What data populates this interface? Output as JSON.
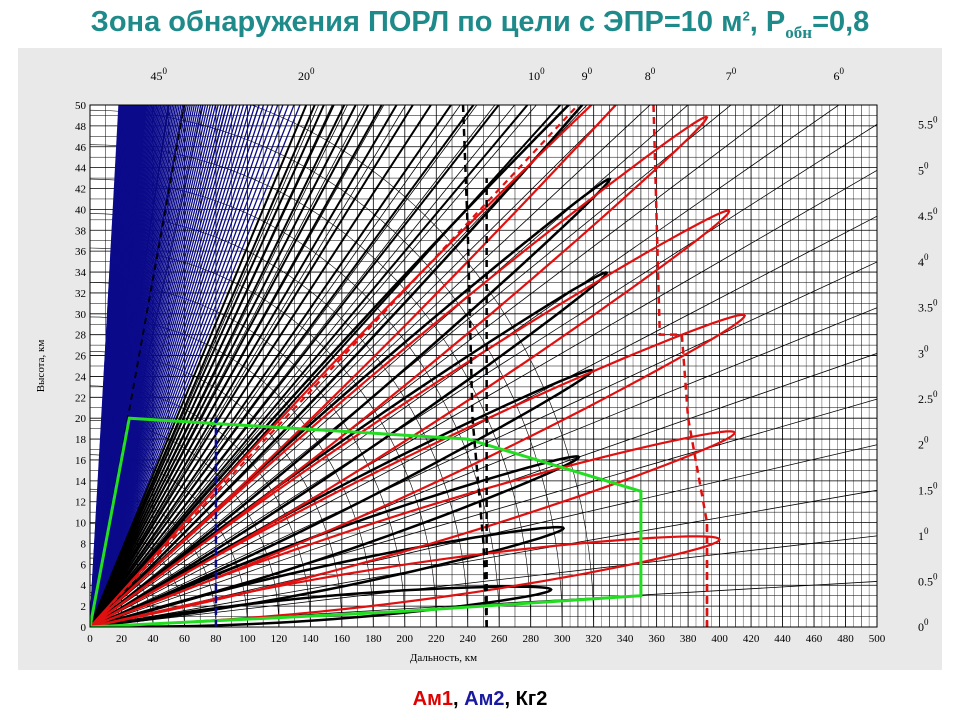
{
  "title": {
    "text": "Зона обнаружения ПОРЛ по цели с ЭПР=10 м",
    "sup": "2",
    "p_letter": ", Р",
    "p_sub": "обн",
    "p_value": "=0,8"
  },
  "caption": {
    "items": [
      {
        "label": "Ам1",
        "color": "#e00000"
      },
      {
        "sep": ", "
      },
      {
        "label": "Ам2",
        "color": "#1a1aa0"
      },
      {
        "sep": ", "
      },
      {
        "label": "Кг2",
        "color": "#000000"
      }
    ]
  },
  "chart_data": {
    "type": "line",
    "xlabel": "Дальность, км",
    "ylabel": "Высота, км",
    "xlim": [
      0,
      500
    ],
    "ylim": [
      0,
      50
    ],
    "x_ticks": [
      0,
      20,
      40,
      60,
      80,
      100,
      120,
      140,
      160,
      180,
      200,
      220,
      240,
      260,
      280,
      300,
      320,
      340,
      360,
      380,
      400,
      420,
      440,
      460,
      480,
      500
    ],
    "y_ticks": [
      0,
      2,
      4,
      6,
      8,
      10,
      12,
      14,
      16,
      18,
      20,
      22,
      24,
      26,
      28,
      30,
      32,
      34,
      36,
      38,
      40,
      42,
      44,
      46,
      48,
      50
    ],
    "top_angle_labels": [
      "45",
      "20",
      "10",
      "9",
      "8",
      "7",
      "6"
    ],
    "top_angle_values": [
      45,
      20,
      10,
      9,
      8,
      7,
      6
    ],
    "right_angle_labels": [
      "0",
      "0.5",
      "1",
      "1.5",
      "2",
      "2.5",
      "3",
      "3.5",
      "4",
      "4.5",
      "5",
      "5.5"
    ],
    "right_angle_values": [
      0,
      0.5,
      1,
      1.5,
      2,
      2.5,
      3,
      3.5,
      4,
      4.5,
      5,
      5.5
    ],
    "degree_mark": "0",
    "colors": {
      "blue": "#0a0a8a",
      "black": "#000000",
      "red": "#e01010",
      "green": "#22dd22"
    },
    "series": [
      {
        "color": "black",
        "lobes": [
          {
            "elev": 0.7,
            "range": 293
          },
          {
            "elev": 1.8,
            "range": 301
          },
          {
            "elev": 3.0,
            "range": 311
          },
          {
            "elev": 4.4,
            "range": 320
          },
          {
            "elev": 5.9,
            "range": 330
          },
          {
            "elev": 7.4,
            "range": 333
          },
          {
            "elev": 9.2,
            "range": 342
          }
        ]
      },
      {
        "color": "red",
        "lobes": [
          {
            "elev": 1.2,
            "range": 400
          },
          {
            "elev": 2.6,
            "range": 410
          },
          {
            "elev": 4.1,
            "range": 417
          },
          {
            "elev": 5.6,
            "range": 408
          },
          {
            "elev": 7.1,
            "range": 395
          },
          {
            "elev": 8.7,
            "range": 385
          }
        ]
      }
    ],
    "green_zone": [
      [
        0,
        0
      ],
      [
        25,
        20
      ],
      [
        240,
        18
      ],
      [
        350,
        13
      ],
      [
        350,
        3
      ],
      [
        200,
        1.5
      ],
      [
        0,
        0
      ]
    ],
    "dashed_verticals": [
      {
        "color": "blue",
        "x": 80
      },
      {
        "color": "black",
        "x": 252
      },
      {
        "color": "red",
        "x": 392
      }
    ]
  }
}
